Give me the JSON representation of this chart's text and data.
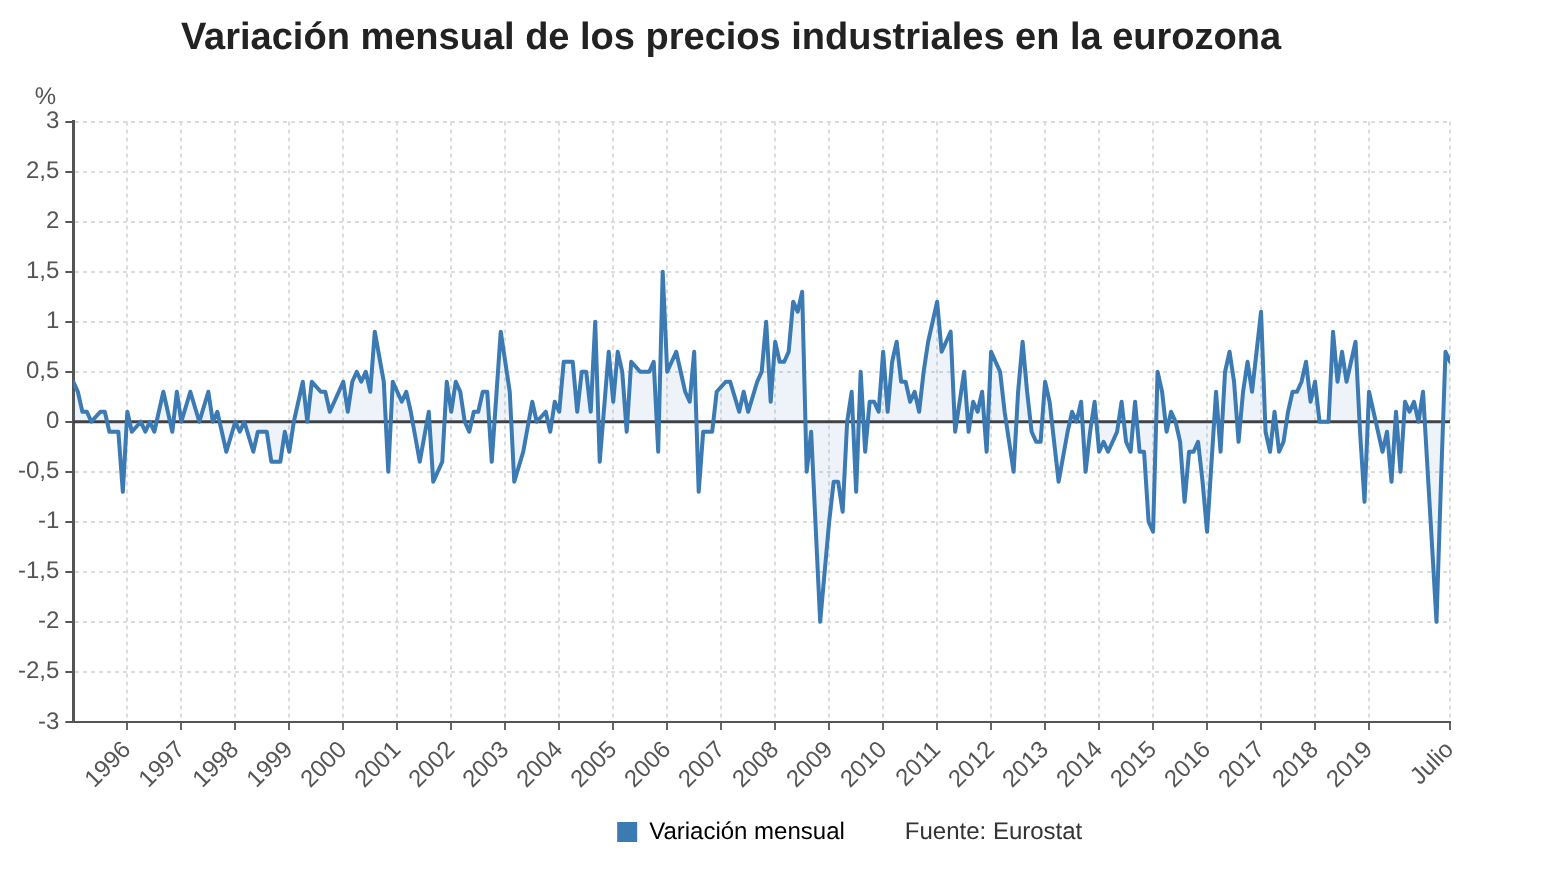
{
  "chart_data": {
    "type": "area",
    "title": "Variación mensual de los precios industriales en la eurozona",
    "ylabel": "%",
    "xlim": [
      "1995-01",
      "2020-07"
    ],
    "xticks": [
      {
        "value": "1996-01",
        "label": "1996"
      },
      {
        "value": "1997-01",
        "label": "1997"
      },
      {
        "value": "1998-01",
        "label": "1998"
      },
      {
        "value": "1999-01",
        "label": "1999"
      },
      {
        "value": "2000-01",
        "label": "2000"
      },
      {
        "value": "2001-01",
        "label": "2001"
      },
      {
        "value": "2002-01",
        "label": "2002"
      },
      {
        "value": "2003-01",
        "label": "2003"
      },
      {
        "value": "2004-01",
        "label": "2004"
      },
      {
        "value": "2005-01",
        "label": "2005"
      },
      {
        "value": "2006-01",
        "label": "2006"
      },
      {
        "value": "2007-01",
        "label": "2007"
      },
      {
        "value": "2008-01",
        "label": "2008"
      },
      {
        "value": "2009-01",
        "label": "2009"
      },
      {
        "value": "2010-01",
        "label": "2010"
      },
      {
        "value": "2011-01",
        "label": "2011"
      },
      {
        "value": "2012-01",
        "label": "2012"
      },
      {
        "value": "2013-01",
        "label": "2013"
      },
      {
        "value": "2014-01",
        "label": "2014"
      },
      {
        "value": "2015-01",
        "label": "2015"
      },
      {
        "value": "2016-01",
        "label": "2016"
      },
      {
        "value": "2017-01",
        "label": "2017"
      },
      {
        "value": "2018-01",
        "label": "2018"
      },
      {
        "value": "2019-01",
        "label": "2019"
      },
      {
        "value": "2020-07",
        "label": "Julio"
      }
    ],
    "ylim": [
      -3,
      3
    ],
    "yticks": [
      3,
      {
        "value": 2.5,
        "label": "2,5"
      },
      2,
      {
        "value": 1.5,
        "label": "1,5"
      },
      1,
      {
        "value": 0.5,
        "label": "0,5"
      },
      0,
      {
        "value": -0.5,
        "label": "-0,5"
      },
      -1,
      {
        "value": -1.5,
        "label": "-1,5"
      },
      -2,
      {
        "value": -2.5,
        "label": "-2,5"
      },
      -3
    ],
    "series": [
      {
        "name": "Variación mensual",
        "color": "#3b7ab3",
        "x": [
          "1995-01",
          "1995-02",
          "1995-03",
          "1995-04",
          "1995-05",
          "1995-07",
          "1995-08",
          "1995-09",
          "1995-11",
          "1995-12",
          "1996-01",
          "1996-02",
          "1996-04",
          "1996-05",
          "1996-06",
          "1996-07",
          "1996-09",
          "1996-11",
          "1996-12",
          "1997-01",
          "1997-03",
          "1997-05",
          "1997-07",
          "1997-08",
          "1997-09",
          "1997-11",
          "1998-01",
          "1998-02",
          "1998-03",
          "1998-05",
          "1998-06",
          "1998-08",
          "1998-09",
          "1998-11",
          "1998-12",
          "1999-01",
          "1999-02",
          "1999-04",
          "1999-05",
          "1999-06",
          "1999-08",
          "1999-09",
          "1999-10",
          "1999-12",
          "2000-01",
          "2000-02",
          "2000-03",
          "2000-04",
          "2000-05",
          "2000-06",
          "2000-07",
          "2000-08",
          "2000-10",
          "2000-11",
          "2000-12",
          "2001-01",
          "2001-02",
          "2001-03",
          "2001-04",
          "2001-06",
          "2001-08",
          "2001-09",
          "2001-11",
          "2001-12",
          "2002-01",
          "2002-02",
          "2002-03",
          "2002-04",
          "2002-05",
          "2002-06",
          "2002-07",
          "2002-08",
          "2002-09",
          "2002-10",
          "2002-12",
          "2003-02",
          "2003-03",
          "2003-05",
          "2003-07",
          "2003-08",
          "2003-10",
          "2003-11",
          "2003-12",
          "2004-01",
          "2004-02",
          "2004-04",
          "2004-05",
          "2004-06",
          "2004-07",
          "2004-08",
          "2004-09",
          "2004-10",
          "2004-12",
          "2005-01",
          "2005-02",
          "2005-03",
          "2005-04",
          "2005-05",
          "2005-07",
          "2005-09",
          "2005-10",
          "2005-11",
          "2005-12",
          "2006-01",
          "2006-03",
          "2006-05",
          "2006-06",
          "2006-07",
          "2006-08",
          "2006-09",
          "2006-11",
          "2006-12",
          "2007-02",
          "2007-03",
          "2007-05",
          "2007-06",
          "2007-07",
          "2007-09",
          "2007-10",
          "2007-11",
          "2007-12",
          "2008-01",
          "2008-02",
          "2008-03",
          "2008-04",
          "2008-05",
          "2008-06",
          "2008-07",
          "2008-08",
          "2008-09",
          "2008-11",
          "2008-12",
          "2009-01",
          "2009-02",
          "2009-03",
          "2009-04",
          "2009-05",
          "2009-06",
          "2009-07",
          "2009-08",
          "2009-09",
          "2009-10",
          "2009-11",
          "2009-12",
          "2010-01",
          "2010-02",
          "2010-03",
          "2010-04",
          "2010-05",
          "2010-06",
          "2010-07",
          "2010-08",
          "2010-09",
          "2010-10",
          "2010-11",
          "2011-01",
          "2011-02",
          "2011-03",
          "2011-04",
          "2011-05",
          "2011-07",
          "2011-08",
          "2011-09",
          "2011-10",
          "2011-11",
          "2011-12",
          "2012-01",
          "2012-03",
          "2012-04",
          "2012-06",
          "2012-07",
          "2012-08",
          "2012-09",
          "2012-10",
          "2012-11",
          "2012-12",
          "2013-01",
          "2013-02",
          "2013-04",
          "2013-06",
          "2013-07",
          "2013-08",
          "2013-09",
          "2013-10",
          "2013-11",
          "2013-12",
          "2014-01",
          "2014-02",
          "2014-03",
          "2014-05",
          "2014-06",
          "2014-07",
          "2014-08",
          "2014-09",
          "2014-10",
          "2014-11",
          "2014-12",
          "2015-01",
          "2015-02",
          "2015-03",
          "2015-04",
          "2015-05",
          "2015-06",
          "2015-07",
          "2015-08",
          "2015-09",
          "2015-10",
          "2015-11",
          "2015-12",
          "2016-01",
          "2016-03",
          "2016-04",
          "2016-05",
          "2016-06",
          "2016-07",
          "2016-08",
          "2016-09",
          "2016-10",
          "2016-11",
          "2016-12",
          "2017-01",
          "2017-02",
          "2017-03",
          "2017-04",
          "2017-05",
          "2017-06",
          "2017-07",
          "2017-08",
          "2017-09",
          "2017-10",
          "2017-11",
          "2017-12",
          "2018-01",
          "2018-02",
          "2018-04",
          "2018-05",
          "2018-06",
          "2018-07",
          "2018-08",
          "2018-09",
          "2018-10",
          "2018-11",
          "2018-12",
          "2019-01",
          "2019-02",
          "2019-03",
          "2019-04",
          "2019-05",
          "2019-06",
          "2019-07",
          "2019-08",
          "2019-09",
          "2019-10",
          "2019-11",
          "2019-12",
          "2020-01",
          "2020-04",
          "2020-05",
          "2020-06",
          "2020-07"
        ],
        "values": [
          0.4,
          0.3,
          0.1,
          0.1,
          0,
          0.1,
          0.1,
          -0.1,
          -0.1,
          -0.7,
          0.1,
          -0.1,
          0,
          -0.1,
          0,
          -0.1,
          0.3,
          -0.1,
          0.3,
          0,
          0.3,
          0,
          0.3,
          0,
          0.1,
          -0.3,
          0,
          -0.1,
          0,
          -0.3,
          -0.1,
          -0.1,
          -0.4,
          -0.4,
          -0.1,
          -0.3,
          0,
          0.4,
          0,
          0.4,
          0.3,
          0.3,
          0.1,
          0.3,
          0.4,
          0.1,
          0.4,
          0.5,
          0.4,
          0.5,
          0.3,
          0.9,
          0.4,
          -0.5,
          0.4,
          0.3,
          0.2,
          0.3,
          0.1,
          -0.4,
          0.1,
          -0.6,
          -0.4,
          0.4,
          0.1,
          0.4,
          0.3,
          0,
          -0.1,
          0.1,
          0.1,
          0.3,
          0.3,
          -0.4,
          0.9,
          0.3,
          -0.6,
          -0.3,
          0.2,
          0,
          0.1,
          -0.1,
          0.2,
          0.1,
          0.6,
          0.6,
          0.1,
          0.5,
          0.5,
          0.1,
          1.0,
          -0.4,
          0.7,
          0.2,
          0.7,
          0.5,
          -0.1,
          0.6,
          0.5,
          0.5,
          0.6,
          -0.3,
          1.5,
          0.5,
          0.7,
          0.3,
          0.2,
          0.7,
          -0.7,
          -0.1,
          -0.1,
          0.3,
          0.4,
          0.4,
          0.1,
          0.3,
          0.1,
          0.4,
          0.5,
          1.0,
          0.2,
          0.8,
          0.6,
          0.6,
          0.7,
          1.2,
          1.1,
          1.3,
          -0.5,
          -0.1,
          -2.0,
          -1.5,
          -1.0,
          -0.6,
          -0.6,
          -0.9,
          0,
          0.3,
          -0.7,
          0.5,
          -0.3,
          0.2,
          0.2,
          0.1,
          0.7,
          0.1,
          0.6,
          0.8,
          0.4,
          0.4,
          0.2,
          0.3,
          0.1,
          0.5,
          0.8,
          1.2,
          0.7,
          0.8,
          0.9,
          -0.1,
          0.5,
          -0.1,
          0.2,
          0.1,
          0.3,
          -0.3,
          0.7,
          0.5,
          0.1,
          -0.5,
          0.3,
          0.8,
          0.3,
          -0.1,
          -0.2,
          -0.2,
          0.4,
          0.2,
          -0.6,
          -0.1,
          0.1,
          0,
          0.2,
          -0.5,
          -0.1,
          0.2,
          -0.3,
          -0.2,
          -0.3,
          -0.1,
          0.2,
          -0.2,
          -0.3,
          0.2,
          -0.3,
          -0.3,
          -1.0,
          -1.1,
          0.5,
          0.3,
          -0.1,
          0.1,
          0,
          -0.2,
          -0.8,
          -0.3,
          -0.3,
          -0.2,
          -0.6,
          -1.1,
          0.3,
          -0.3,
          0.5,
          0.7,
          0.4,
          -0.2,
          0.3,
          0.6,
          0.3,
          0.7,
          1.1,
          -0.1,
          -0.3,
          0.1,
          -0.3,
          -0.2,
          0.1,
          0.3,
          0.3,
          0.4,
          0.6,
          0.2,
          0.4,
          0,
          0,
          0.9,
          0.4,
          0.7,
          0.4,
          0.6,
          0.8,
          -0.1,
          -0.8,
          0.3,
          0.1,
          -0.1,
          -0.3,
          -0.1,
          -0.6,
          0.1,
          -0.5,
          0.2,
          0.1,
          0.2,
          0,
          0.3,
          -2.0,
          -0.6,
          0.7,
          0.6
        ]
      }
    ],
    "ref_lines": [
      {
        "axis": "y",
        "value": 0,
        "color": "#404040"
      }
    ],
    "grid": true,
    "legend": "bottom",
    "annotations": [
      "Fuente: Eurostat"
    ]
  }
}
